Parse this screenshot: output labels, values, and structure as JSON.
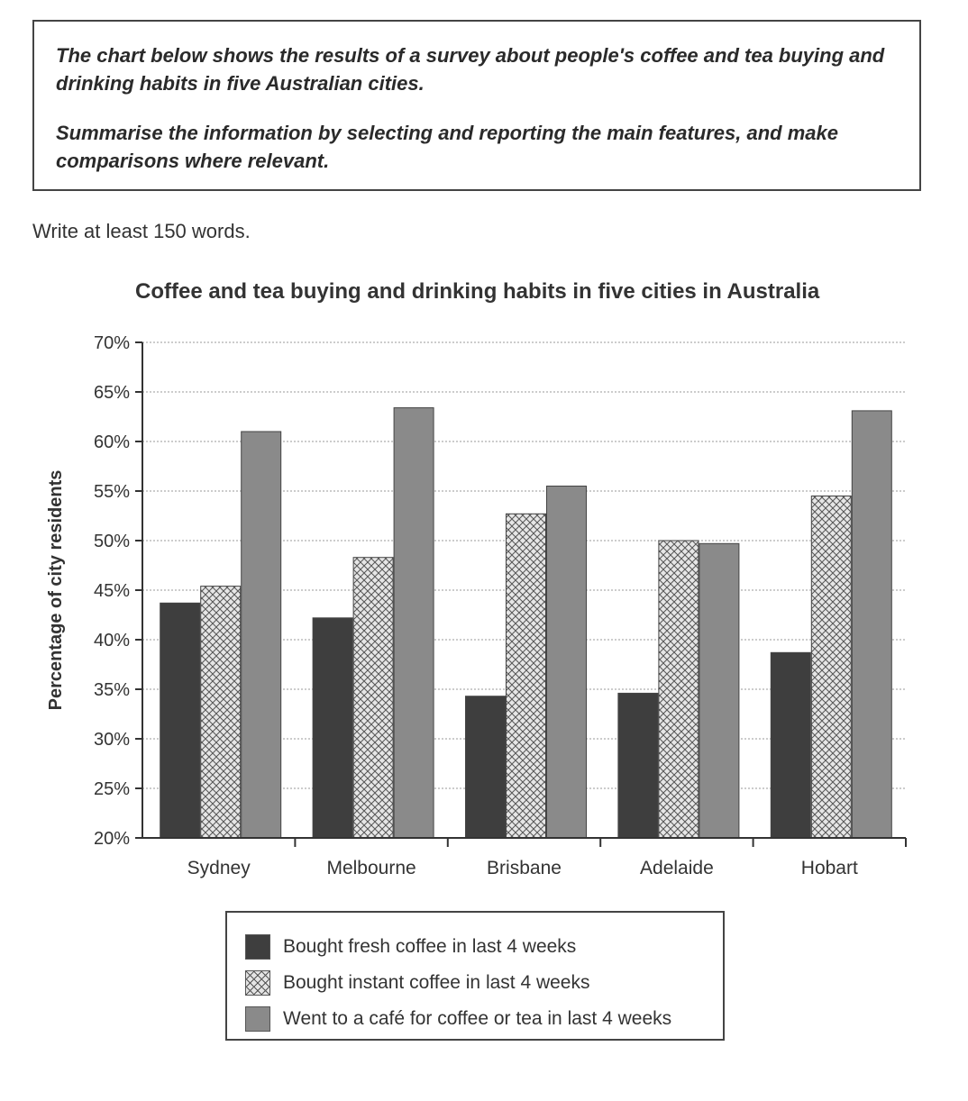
{
  "task": {
    "paragraph1": "The chart below shows the results of a survey about people's coffee and tea buying and drinking habits in five Australian cities.",
    "paragraph2": "Summarise the information by selecting and reporting the main features, and make comparisons where relevant."
  },
  "instruction": "Write at least 150 words.",
  "colors": {
    "fresh": "#3e3e3e",
    "instant": "#e4e4e4",
    "cafe": "#8a8a8a"
  },
  "chart_data": {
    "type": "bar",
    "title": "Coffee and tea buying and drinking habits in five cities in Australia",
    "ylabel": "Percentage of city residents",
    "xlabel": "",
    "ylim": [
      20,
      70
    ],
    "yticks": [
      "20%",
      "25%",
      "30%",
      "35%",
      "40%",
      "45%",
      "50%",
      "55%",
      "60%",
      "65%",
      "70%"
    ],
    "grid": true,
    "legend_position": "bottom",
    "categories": [
      "Sydney",
      "Melbourne",
      "Brisbane",
      "Adelaide",
      "Hobart"
    ],
    "series": [
      {
        "name": "Bought fresh coffee in last 4 weeks",
        "values": [
          43.7,
          42.2,
          34.3,
          34.6,
          38.7
        ]
      },
      {
        "name": "Bought instant coffee in last 4 weeks",
        "values": [
          45.4,
          48.3,
          52.7,
          50.0,
          54.5
        ]
      },
      {
        "name": "Went to a café for coffee or tea in last 4 weeks",
        "values": [
          61.0,
          63.4,
          55.5,
          49.7,
          63.1
        ]
      }
    ]
  }
}
